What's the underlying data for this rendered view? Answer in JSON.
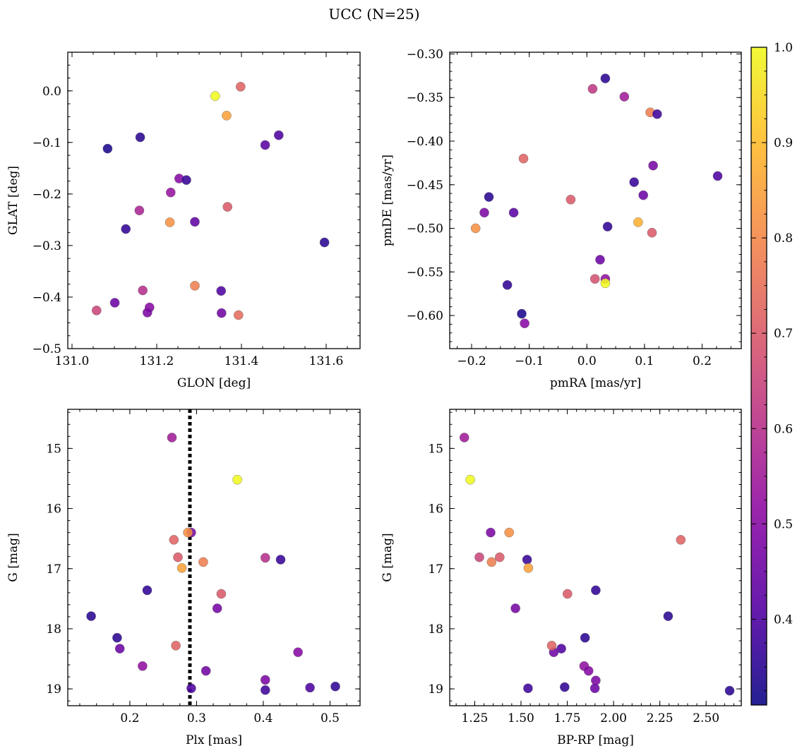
{
  "figure": {
    "title": "UCC (N=25)"
  },
  "colorbar": {
    "colormap": "plasma",
    "range": [
      0.31,
      1.0
    ],
    "ticks": [
      "0.4",
      "0.5",
      "0.6",
      "0.7",
      "0.8",
      "0.9",
      "1.0"
    ],
    "tick_values": [
      0.4,
      0.5,
      0.6,
      0.7,
      0.8,
      0.9,
      1.0
    ]
  },
  "chart_data": [
    {
      "type": "scatter",
      "xlabel": "GLON [deg]",
      "ylabel": "GLAT [deg]",
      "xlim": [
        130.99,
        131.68
      ],
      "ylim": [
        -0.5,
        0.075
      ],
      "xticks": [
        131.0,
        131.2,
        131.4,
        131.6
      ],
      "xtick_labels": [
        "131.0",
        "131.2",
        "131.4",
        "131.6"
      ],
      "yticks": [
        0.0,
        -0.1,
        -0.2,
        -0.3,
        -0.4,
        -0.5
      ],
      "ytick_labels": [
        "0.0",
        "−0.1",
        "−0.2",
        "−0.3",
        "−0.4",
        "−0.5"
      ],
      "x": [
        131.338,
        131.398,
        131.365,
        131.084,
        131.161,
        131.488,
        131.456,
        131.253,
        131.27,
        131.233,
        131.367,
        131.159,
        131.231,
        131.127,
        131.29,
        131.596,
        131.29,
        131.167,
        131.352,
        131.058,
        131.101,
        131.183,
        131.178,
        131.353,
        131.393
      ],
      "y": [
        -0.01,
        0.008,
        -0.048,
        -0.112,
        -0.09,
        -0.086,
        -0.105,
        -0.17,
        -0.173,
        -0.197,
        -0.225,
        -0.232,
        -0.255,
        -0.268,
        -0.254,
        -0.294,
        -0.378,
        -0.387,
        -0.388,
        -0.426,
        -0.411,
        -0.42,
        -0.43,
        -0.431,
        -0.435
      ],
      "c": [
        1.0,
        0.72,
        0.85,
        0.33,
        0.35,
        0.4,
        0.42,
        0.5,
        0.37,
        0.53,
        0.7,
        0.57,
        0.82,
        0.36,
        0.43,
        0.35,
        0.78,
        0.6,
        0.4,
        0.65,
        0.45,
        0.5,
        0.48,
        0.46,
        0.74
      ]
    },
    {
      "type": "scatter",
      "xlabel": "pmRA [mas/yr]",
      "ylabel": "pmDE [mas/yr]",
      "xlim": [
        -0.238,
        0.268
      ],
      "ylim": [
        -0.638,
        -0.298
      ],
      "xticks": [
        -0.2,
        -0.1,
        0.0,
        0.1,
        0.2
      ],
      "xtick_labels": [
        "−0.2",
        "−0.1",
        "0.0",
        "0.1",
        "0.2"
      ],
      "yticks": [
        -0.3,
        -0.35,
        -0.4,
        -0.45,
        -0.5,
        -0.55,
        -0.6
      ],
      "ytick_labels": [
        "−0.30",
        "−0.35",
        "−0.40",
        "−0.45",
        "−0.50",
        "−0.55",
        "−0.60"
      ],
      "x": [
        0.032,
        0.01,
        0.065,
        0.11,
        0.122,
        -0.11,
        0.115,
        0.227,
        0.082,
        -0.17,
        0.098,
        -0.028,
        -0.178,
        -0.127,
        0.036,
        -0.193,
        0.089,
        0.113,
        0.023,
        0.014,
        0.032,
        -0.138,
        0.032,
        -0.113,
        -0.108
      ],
      "y": [
        -0.328,
        -0.34,
        -0.349,
        -0.367,
        -0.369,
        -0.42,
        -0.428,
        -0.44,
        -0.447,
        -0.464,
        -0.462,
        -0.467,
        -0.482,
        -0.482,
        -0.498,
        -0.5,
        -0.493,
        -0.505,
        -0.536,
        -0.558,
        -0.558,
        -0.565,
        -0.563,
        -0.598,
        -0.609
      ],
      "c": [
        0.35,
        0.62,
        0.55,
        0.78,
        0.38,
        0.72,
        0.47,
        0.4,
        0.37,
        0.35,
        0.45,
        0.7,
        0.48,
        0.42,
        0.36,
        0.82,
        0.88,
        0.7,
        0.45,
        0.68,
        0.52,
        0.36,
        1.0,
        0.33,
        0.5
      ]
    },
    {
      "type": "scatter",
      "xlabel": "Plx [mas]",
      "ylabel": "G [mag]",
      "xlim": [
        0.107,
        0.545
      ],
      "ylim": [
        19.28,
        14.35
      ],
      "xticks": [
        0.2,
        0.3,
        0.4,
        0.5
      ],
      "xtick_labels": [
        "0.2",
        "0.3",
        "0.4",
        "0.5"
      ],
      "yticks": [
        15,
        16,
        17,
        18,
        19
      ],
      "ytick_labels": [
        "15",
        "16",
        "17",
        "18",
        "19"
      ],
      "vline": 0.29,
      "x": [
        0.263,
        0.361,
        0.292,
        0.287,
        0.266,
        0.272,
        0.403,
        0.426,
        0.31,
        0.278,
        0.226,
        0.337,
        0.331,
        0.142,
        0.181,
        0.185,
        0.452,
        0.269,
        0.219,
        0.314,
        0.403,
        0.292,
        0.403,
        0.47,
        0.508
      ],
      "y": [
        14.82,
        15.52,
        16.4,
        16.4,
        16.52,
        16.81,
        16.82,
        16.85,
        16.89,
        16.99,
        17.36,
        17.42,
        17.66,
        17.79,
        18.15,
        18.33,
        18.39,
        18.28,
        18.62,
        18.7,
        18.85,
        18.99,
        19.02,
        18.98,
        18.96
      ],
      "c": [
        0.55,
        1.0,
        0.48,
        0.82,
        0.72,
        0.7,
        0.6,
        0.37,
        0.78,
        0.85,
        0.36,
        0.7,
        0.47,
        0.35,
        0.35,
        0.45,
        0.5,
        0.72,
        0.52,
        0.46,
        0.48,
        0.4,
        0.38,
        0.4,
        0.36
      ]
    },
    {
      "type": "scatter",
      "xlabel": "BP-RP [mag]",
      "ylabel": "G [mag]",
      "xlim": [
        1.115,
        2.69
      ],
      "ylim": [
        19.28,
        14.35
      ],
      "xticks": [
        1.25,
        1.5,
        1.75,
        2.0,
        2.25,
        2.5
      ],
      "xtick_labels": [
        "1.25",
        "1.50",
        "1.75",
        "2.00",
        "2.25",
        "2.50"
      ],
      "yticks": [
        15,
        16,
        17,
        18,
        19
      ],
      "ytick_labels": [
        "15",
        "16",
        "17",
        "18",
        "19"
      ],
      "x": [
        1.194,
        1.226,
        1.336,
        1.436,
        2.363,
        1.275,
        1.385,
        1.533,
        1.341,
        1.54,
        1.904,
        1.751,
        1.47,
        2.295,
        1.846,
        1.718,
        1.677,
        1.666,
        1.841,
        1.865,
        1.904,
        1.538,
        1.736,
        1.899,
        2.627
      ],
      "y": [
        14.82,
        15.52,
        16.4,
        16.4,
        16.52,
        16.81,
        16.81,
        16.85,
        16.89,
        16.99,
        17.36,
        17.42,
        17.66,
        17.79,
        18.15,
        18.33,
        18.39,
        18.28,
        18.62,
        18.7,
        18.86,
        18.99,
        18.97,
        18.99,
        19.03
      ],
      "c": [
        0.55,
        1.0,
        0.48,
        0.82,
        0.72,
        0.65,
        0.7,
        0.37,
        0.78,
        0.85,
        0.36,
        0.7,
        0.47,
        0.35,
        0.35,
        0.4,
        0.46,
        0.72,
        0.52,
        0.5,
        0.48,
        0.38,
        0.36,
        0.45,
        0.35
      ]
    }
  ]
}
